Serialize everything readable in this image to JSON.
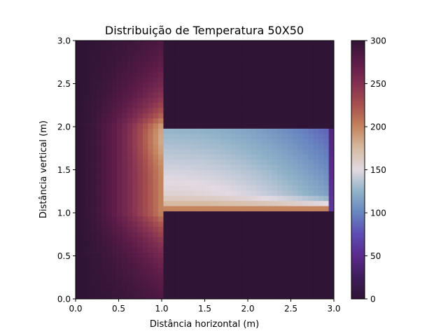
{
  "chart_data": {
    "type": "heatmap",
    "title": "Distribuição de Temperatura 50X50",
    "xlabel": "Distância horizontal (m)",
    "ylabel": "Distância vertical (m)",
    "xlim": [
      0.0,
      3.0
    ],
    "ylim": [
      0.0,
      3.0
    ],
    "xticks": [
      "0.0",
      "0.5",
      "1.0",
      "1.5",
      "2.0",
      "2.5",
      "3.0"
    ],
    "yticks": [
      "0.0",
      "0.5",
      "1.0",
      "1.5",
      "2.0",
      "2.5",
      "3.0"
    ],
    "grid": [
      50,
      50
    ],
    "colormap": "twilight_shifted",
    "colorbar": {
      "vmin": 0,
      "vmax": 300,
      "ticks": [
        "0",
        "50",
        "100",
        "150",
        "200",
        "250",
        "300"
      ]
    },
    "regions": {
      "outside_value": 300,
      "left_column": {
        "x": [
          0.0,
          1.0
        ],
        "y": [
          0.0,
          3.0
        ],
        "left_edge": 300,
        "interface_value": 200
      },
      "right_channel": {
        "x": [
          1.0,
          3.0
        ],
        "y": [
          1.0,
          2.0
        ],
        "top_edge": 120,
        "bottom_edge": 200,
        "right_edge": 40
      }
    }
  }
}
